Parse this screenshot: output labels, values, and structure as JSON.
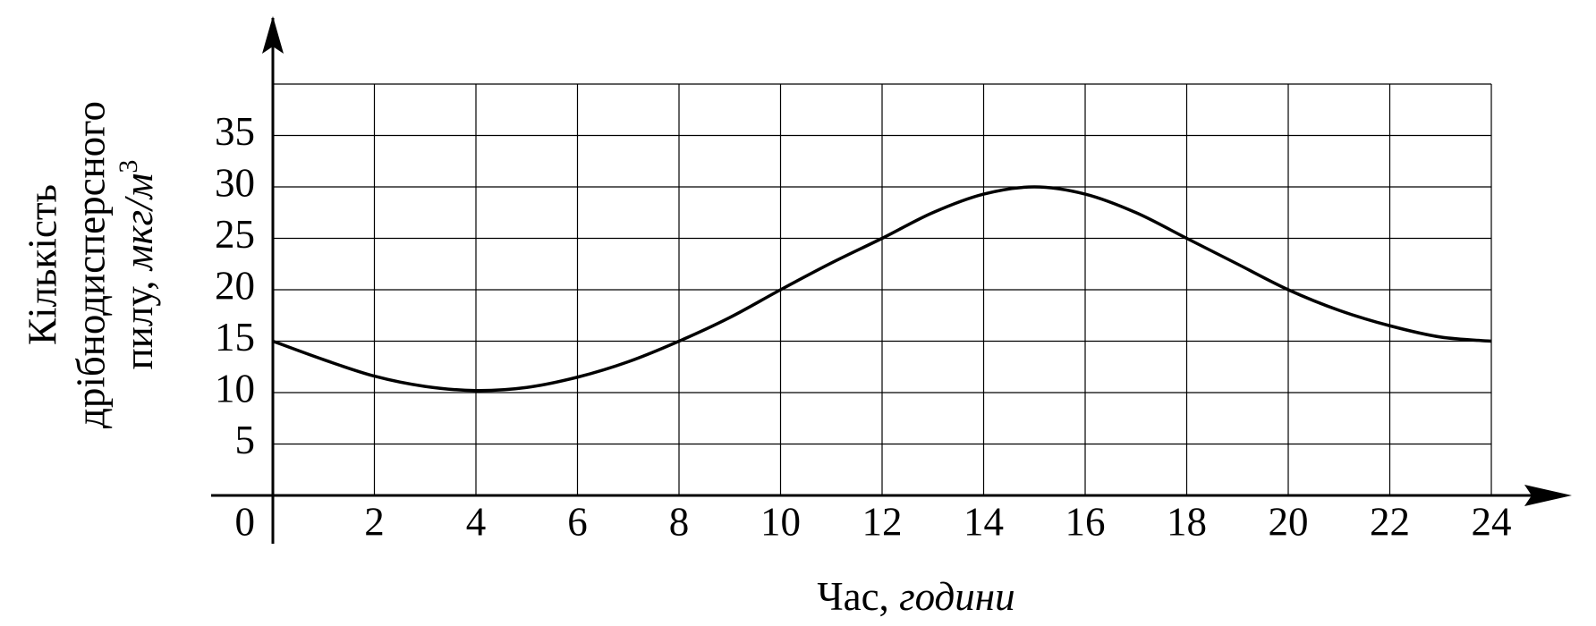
{
  "chart_data": {
    "type": "line",
    "x": [
      0,
      1,
      2,
      3,
      4,
      5,
      6,
      7,
      8,
      9,
      10,
      11,
      12,
      13,
      14,
      15,
      16,
      17,
      18,
      19,
      20,
      21,
      22,
      23,
      24
    ],
    "series": [
      {
        "color": "#000000",
        "values": [
          15,
          13.2,
          11.6,
          10.6,
          10.2,
          10.5,
          11.5,
          13,
          15,
          17.3,
          20,
          22.6,
          25,
          27.5,
          29.3,
          30,
          29.3,
          27.5,
          25,
          22.5,
          20,
          18,
          16.5,
          15.4,
          15
        ]
      }
    ],
    "xlim": [
      0,
      24
    ],
    "ylim": [
      0,
      40
    ],
    "xticks": [
      2,
      4,
      6,
      8,
      10,
      12,
      14,
      16,
      18,
      20,
      22,
      24
    ],
    "yticks": [
      5,
      10,
      15,
      20,
      25,
      30,
      35
    ],
    "origin_label": "0",
    "grid": true,
    "x_label": {
      "text": "Час,",
      "unit": "години"
    },
    "y_label": {
      "lines": [
        "Кількість",
        "дрібнодисперсного"
      ],
      "text": "пилу,",
      "unit": "мкг/м",
      "unit_power": "3"
    }
  }
}
